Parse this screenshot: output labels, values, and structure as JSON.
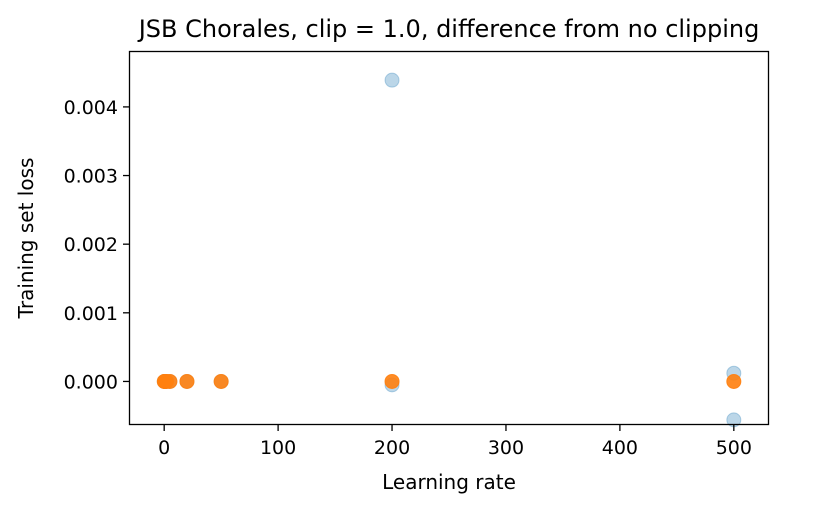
{
  "chart_data": {
    "type": "scatter",
    "title": "JSB Chorales, clip = 1.0, difference from no clipping",
    "xlabel": "Learning rate",
    "ylabel": "Training set loss",
    "xlim": [
      -30,
      530
    ],
    "ylim": [
      -0.00062,
      0.0048
    ],
    "xticks": [
      0,
      100,
      200,
      300,
      400,
      500
    ],
    "xtick_labels": [
      "0",
      "100",
      "200",
      "300",
      "400",
      "500"
    ],
    "yticks": [
      0.0,
      0.001,
      0.002,
      0.003,
      0.004
    ],
    "ytick_labels": [
      "0.000",
      "0.001",
      "0.002",
      "0.003",
      "0.004"
    ],
    "grid": false,
    "legend": "none",
    "series": [
      {
        "color": "#1f77b4",
        "alpha": 0.3,
        "points": [
          {
            "x": 0.1,
            "y": 0.0
          },
          {
            "x": 0.5,
            "y": 0.0
          },
          {
            "x": 1,
            "y": 0.0
          },
          {
            "x": 2,
            "y": 0.0
          },
          {
            "x": 5,
            "y": 0.0
          },
          {
            "x": 20,
            "y": 0.0
          },
          {
            "x": 50,
            "y": 0.0
          },
          {
            "x": 200,
            "y": 0.00439
          },
          {
            "x": 200,
            "y": -5e-05
          },
          {
            "x": 500,
            "y": 0.00012
          },
          {
            "x": 500,
            "y": -0.00056
          }
        ]
      },
      {
        "color": "#ff7f0e",
        "alpha": 0.9,
        "points": [
          {
            "x": 0.1,
            "y": 0.0
          },
          {
            "x": 0.5,
            "y": 0.0
          },
          {
            "x": 1,
            "y": 0.0
          },
          {
            "x": 2,
            "y": 0.0
          },
          {
            "x": 5,
            "y": 0.0
          },
          {
            "x": 20,
            "y": 0.0
          },
          {
            "x": 50,
            "y": 0.0
          },
          {
            "x": 200,
            "y": 0.0
          },
          {
            "x": 500,
            "y": 0.0
          }
        ]
      }
    ]
  }
}
